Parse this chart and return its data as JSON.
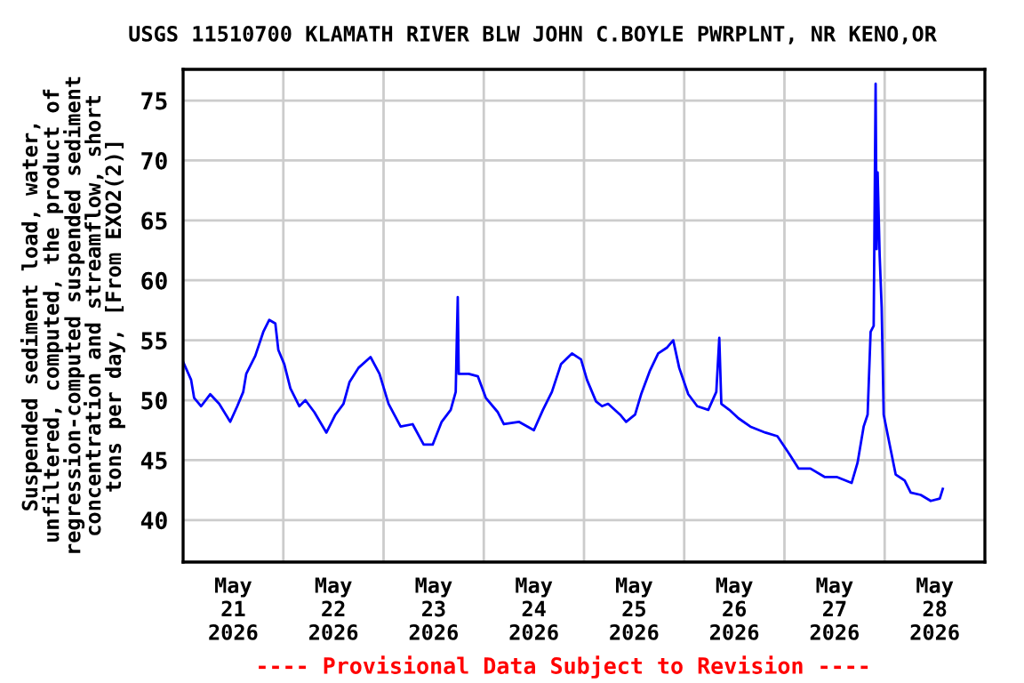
{
  "chart_data": {
    "type": "line",
    "title": "USGS 11510700 KLAMATH RIVER BLW JOHN C.BOYLE PWRPLNT, NR KENO,OR",
    "ylabel": "Suspended sediment load, water,\nunfiltered, computed, the product of\nregression-computed suspended sediment\nconcentration and streamflow, short\ntons per day, [From EXO2(2)]",
    "annotations": [
      "---- Provisional Data Subject to Revision ----"
    ],
    "series": [
      {
        "color": "#0000ff",
        "x": [
          "2026-05-21T00:00",
          "2026-05-21T01:55",
          "2026-05-21T02:38",
          "2026-05-21T04:19",
          "2026-05-21T06:29",
          "2026-05-21T08:38",
          "2026-05-21T11:17",
          "2026-05-21T12:58",
          "2026-05-21T14:24",
          "2026-05-21T15:07",
          "2026-05-21T17:17",
          "2026-05-21T19:12",
          "2026-05-21T20:38",
          "2026-05-21T22:05",
          "2026-05-21T22:48",
          "2026-05-22T00:14",
          "2026-05-22T01:41",
          "2026-05-22T03:50",
          "2026-05-22T05:17",
          "2026-05-22T07:26",
          "2026-05-22T10:19",
          "2026-05-22T12:29",
          "2026-05-22T14:24",
          "2026-05-22T15:50",
          "2026-05-22T18:00",
          "2026-05-22T20:53",
          "2026-05-22T23:02",
          "2026-05-23T01:12",
          "2026-05-23T04:05",
          "2026-05-23T06:58",
          "2026-05-23T09:36",
          "2026-05-23T11:46",
          "2026-05-23T13:55",
          "2026-05-23T16:05",
          "2026-05-23T17:17",
          "2026-05-23T17:31",
          "2026-05-23T17:46",
          "2026-05-23T18:00",
          "2026-05-23T20:24",
          "2026-05-23T22:34",
          "2026-05-24T00:29",
          "2026-05-24T03:22",
          "2026-05-24T04:48",
          "2026-05-24T08:24",
          "2026-05-24T12:00",
          "2026-05-24T14:10",
          "2026-05-24T16:19",
          "2026-05-24T18:29",
          "2026-05-24T21:07",
          "2026-05-24T23:17",
          "2026-05-25T00:43",
          "2026-05-25T02:53",
          "2026-05-25T04:19",
          "2026-05-25T05:46",
          "2026-05-25T08:38",
          "2026-05-25T10:05",
          "2026-05-25T12:14",
          "2026-05-25T13:41",
          "2026-05-25T15:50",
          "2026-05-25T17:46",
          "2026-05-25T19:55",
          "2026-05-25T21:22",
          "2026-05-25T22:48",
          "2026-05-26T00:58",
          "2026-05-26T03:07",
          "2026-05-26T05:46",
          "2026-05-26T07:41",
          "2026-05-26T08:24",
          "2026-05-26T08:53",
          "2026-05-26T10:48",
          "2026-05-26T12:58",
          "2026-05-26T15:50",
          "2026-05-26T19:26",
          "2026-05-26T22:19",
          "2026-05-27T01:12",
          "2026-05-27T03:22",
          "2026-05-27T06:14",
          "2026-05-27T09:36",
          "2026-05-27T12:29",
          "2026-05-27T16:05",
          "2026-05-27T17:31",
          "2026-05-27T18:58",
          "2026-05-27T19:55",
          "2026-05-27T20:38",
          "2026-05-27T21:22",
          "2026-05-27T21:50",
          "2026-05-27T22:05",
          "2026-05-27T22:19",
          "2026-05-27T22:48",
          "2026-05-27T23:17",
          "2026-05-27T23:46",
          "2026-05-28T01:12",
          "2026-05-28T02:38",
          "2026-05-28T04:48",
          "2026-05-28T06:14",
          "2026-05-28T08:38",
          "2026-05-28T11:02",
          "2026-05-28T13:12",
          "2026-05-28T13:55"
        ],
        "values": [
          53.2,
          51.7,
          50.2,
          49.5,
          50.5,
          49.7,
          48.2,
          49.5,
          50.7,
          52.2,
          53.7,
          55.7,
          56.7,
          56.4,
          54.2,
          53.0,
          51.0,
          49.5,
          50.0,
          49.0,
          47.3,
          48.8,
          49.7,
          51.5,
          52.7,
          53.6,
          52.2,
          49.7,
          47.8,
          48.0,
          46.3,
          46.3,
          48.2,
          49.2,
          50.7,
          54.7,
          58.6,
          52.2,
          52.2,
          52.0,
          50.2,
          49.0,
          48.0,
          48.2,
          47.5,
          49.2,
          50.7,
          53.0,
          53.9,
          53.4,
          51.7,
          49.9,
          49.5,
          49.7,
          48.8,
          48.2,
          48.8,
          50.5,
          52.5,
          53.9,
          54.4,
          55.0,
          52.7,
          50.5,
          49.5,
          49.2,
          50.7,
          55.2,
          49.7,
          49.2,
          48.5,
          47.8,
          47.3,
          47.0,
          45.5,
          44.3,
          44.3,
          43.6,
          43.6,
          43.1,
          44.8,
          47.8,
          48.8,
          55.7,
          56.2,
          76.4,
          62.6,
          69.0,
          62.1,
          57.7,
          48.8,
          46.3,
          43.8,
          43.3,
          42.3,
          42.1,
          41.6,
          41.8,
          42.6
        ]
      }
    ],
    "xlim": [
      "2026-05-21T00:00",
      "2026-05-29T00:00"
    ],
    "xticks": [
      {
        "value": "2026-05-21T12:00",
        "label": "May\n21\n2026"
      },
      {
        "value": "2026-05-22T12:00",
        "label": "May\n22\n2026"
      },
      {
        "value": "2026-05-23T12:00",
        "label": "May\n23\n2026"
      },
      {
        "value": "2026-05-24T12:00",
        "label": "May\n24\n2026"
      },
      {
        "value": "2026-05-25T12:00",
        "label": "May\n25\n2026"
      },
      {
        "value": "2026-05-26T12:00",
        "label": "May\n26\n2026"
      },
      {
        "value": "2026-05-27T12:00",
        "label": "May\n27\n2026"
      },
      {
        "value": "2026-05-28T12:00",
        "label": "May\n28\n2026"
      },
      {
        "value": "2026-05-22T00:00",
        "label": null
      },
      {
        "value": "2026-05-23T00:00",
        "label": null
      },
      {
        "value": "2026-05-24T00:00",
        "label": null
      },
      {
        "value": "2026-05-25T00:00",
        "label": null
      },
      {
        "value": "2026-05-26T00:00",
        "label": null
      },
      {
        "value": "2026-05-27T00:00",
        "label": null
      },
      {
        "value": "2026-05-28T00:00",
        "label": null
      }
    ],
    "ylim": [
      36.5,
      77.6
    ],
    "yticks": [
      40,
      45,
      50,
      55,
      60,
      65,
      70,
      75
    ],
    "grid": true
  }
}
